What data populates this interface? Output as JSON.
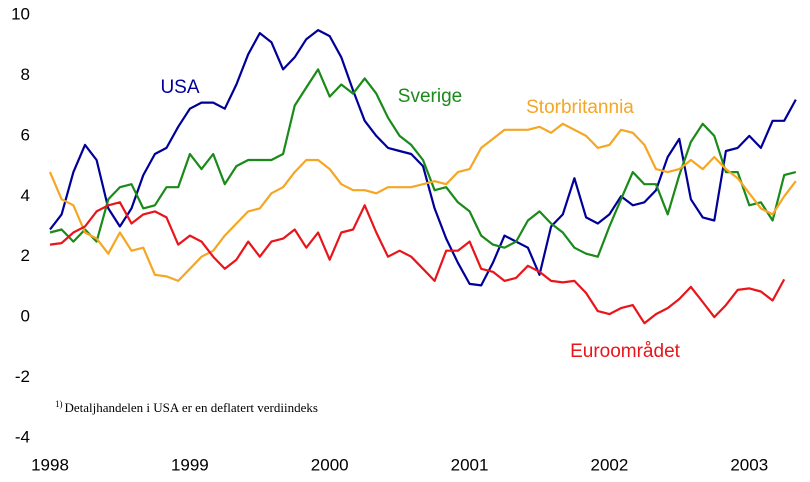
{
  "chart_data": {
    "type": "line",
    "x": [
      1998,
      1998.083,
      1998.167,
      1998.25,
      1998.333,
      1998.417,
      1998.5,
      1998.583,
      1998.667,
      1998.75,
      1998.833,
      1998.917,
      1999,
      1999.083,
      1999.167,
      1999.25,
      1999.333,
      1999.417,
      1999.5,
      1999.583,
      1999.667,
      1999.75,
      1999.833,
      1999.917,
      2000,
      2000.083,
      2000.167,
      2000.25,
      2000.333,
      2000.417,
      2000.5,
      2000.583,
      2000.667,
      2000.75,
      2000.833,
      2000.917,
      2001,
      2001.083,
      2001.167,
      2001.25,
      2001.333,
      2001.417,
      2001.5,
      2001.583,
      2001.667,
      2001.75,
      2001.833,
      2001.917,
      2002,
      2002.083,
      2002.167,
      2002.25,
      2002.333,
      2002.417,
      2002.5,
      2002.583,
      2002.667,
      2002.75,
      2002.833,
      2002.917,
      2003,
      2003.083,
      2003.167,
      2003.25,
      2003.333
    ],
    "series": [
      {
        "name": "USA",
        "color": "#000099",
        "values": [
          2.9,
          3.4,
          4.8,
          5.7,
          5.2,
          3.6,
          3.0,
          3.6,
          4.7,
          5.4,
          5.6,
          6.3,
          6.9,
          7.1,
          7.1,
          6.9,
          7.7,
          8.7,
          9.4,
          9.1,
          8.2,
          8.6,
          9.2,
          9.5,
          9.3,
          8.6,
          7.5,
          6.5,
          6.0,
          5.6,
          5.5,
          5.4,
          5.0,
          3.6,
          2.6,
          1.8,
          1.1,
          1.05,
          1.8,
          2.7,
          2.5,
          2.3,
          1.4,
          3.0,
          3.4,
          4.6,
          3.3,
          3.1,
          3.4,
          4.0,
          3.7,
          3.8,
          4.2,
          5.3,
          5.9,
          3.9,
          3.3,
          3.2,
          5.5,
          5.6,
          6.0,
          5.6,
          6.5,
          6.5,
          7.2
        ]
      },
      {
        "name": "Sverige",
        "color": "#1a8a1a",
        "values": [
          2.8,
          2.9,
          2.5,
          2.9,
          2.5,
          3.9,
          4.3,
          4.4,
          3.6,
          3.7,
          4.3,
          4.3,
          5.4,
          4.9,
          5.4,
          4.4,
          5.0,
          5.2,
          5.2,
          5.2,
          5.4,
          7.0,
          7.6,
          8.2,
          7.3,
          7.7,
          7.4,
          7.9,
          7.4,
          6.6,
          6.0,
          5.7,
          5.2,
          4.2,
          4.3,
          3.8,
          3.5,
          2.7,
          2.4,
          2.3,
          2.5,
          3.2,
          3.5,
          3.1,
          2.8,
          2.3,
          2.1,
          2.0,
          3.0,
          3.9,
          4.8,
          4.4,
          4.4,
          3.4,
          4.7,
          5.8,
          6.4,
          6.0,
          4.8,
          4.8,
          3.7,
          3.8,
          3.2,
          4.7,
          4.8
        ]
      },
      {
        "name": "Storbritannia",
        "color": "#f5a623",
        "values": [
          4.8,
          3.9,
          3.7,
          2.8,
          2.6,
          2.1,
          2.8,
          2.2,
          2.3,
          1.4,
          1.35,
          1.2,
          1.6,
          2.0,
          2.2,
          2.7,
          3.1,
          3.5,
          3.6,
          4.1,
          4.3,
          4.8,
          5.2,
          5.2,
          4.9,
          4.4,
          4.2,
          4.2,
          4.1,
          4.3,
          4.3,
          4.3,
          4.4,
          4.5,
          4.4,
          4.8,
          4.9,
          5.6,
          5.9,
          6.2,
          6.2,
          6.2,
          6.3,
          6.1,
          6.4,
          6.2,
          6.0,
          5.6,
          5.7,
          6.2,
          6.1,
          5.7,
          4.9,
          4.8,
          4.9,
          5.2,
          4.9,
          5.3,
          4.9,
          4.6,
          4.1,
          3.6,
          3.4,
          4.0,
          4.5
        ]
      },
      {
        "name": "Euroområdet",
        "color": "#e8151b",
        "values": [
          2.4,
          2.45,
          2.8,
          3.0,
          3.5,
          3.7,
          3.8,
          3.1,
          3.4,
          3.5,
          3.3,
          2.4,
          2.7,
          2.5,
          2.0,
          1.6,
          1.9,
          2.5,
          2.0,
          2.5,
          2.6,
          2.9,
          2.3,
          2.8,
          1.9,
          2.8,
          2.9,
          3.7,
          2.8,
          2.0,
          2.2,
          2.0,
          1.6,
          1.2,
          2.2,
          2.2,
          2.5,
          1.6,
          1.5,
          1.2,
          1.3,
          1.7,
          1.5,
          1.2,
          1.15,
          1.2,
          0.8,
          0.2,
          0.1,
          0.3,
          0.4,
          -0.2,
          0.1,
          0.3,
          0.6,
          1.0,
          0.5,
          0.0,
          0.4,
          0.9,
          0.95,
          0.85,
          0.55,
          1.25,
          null
        ]
      }
    ],
    "footnote_mark": "1)",
    "footnote": "Detaljhandelen i USA er en deflatert verdiindeks",
    "xlim": [
      1998,
      2003.42
    ],
    "xticks": [
      1998,
      1999,
      2000,
      2001,
      2002,
      2003
    ],
    "ylim": [
      -4,
      10
    ],
    "yticks": [
      -4,
      -2,
      0,
      2,
      4,
      6,
      8,
      10
    ],
    "grid": false
  }
}
